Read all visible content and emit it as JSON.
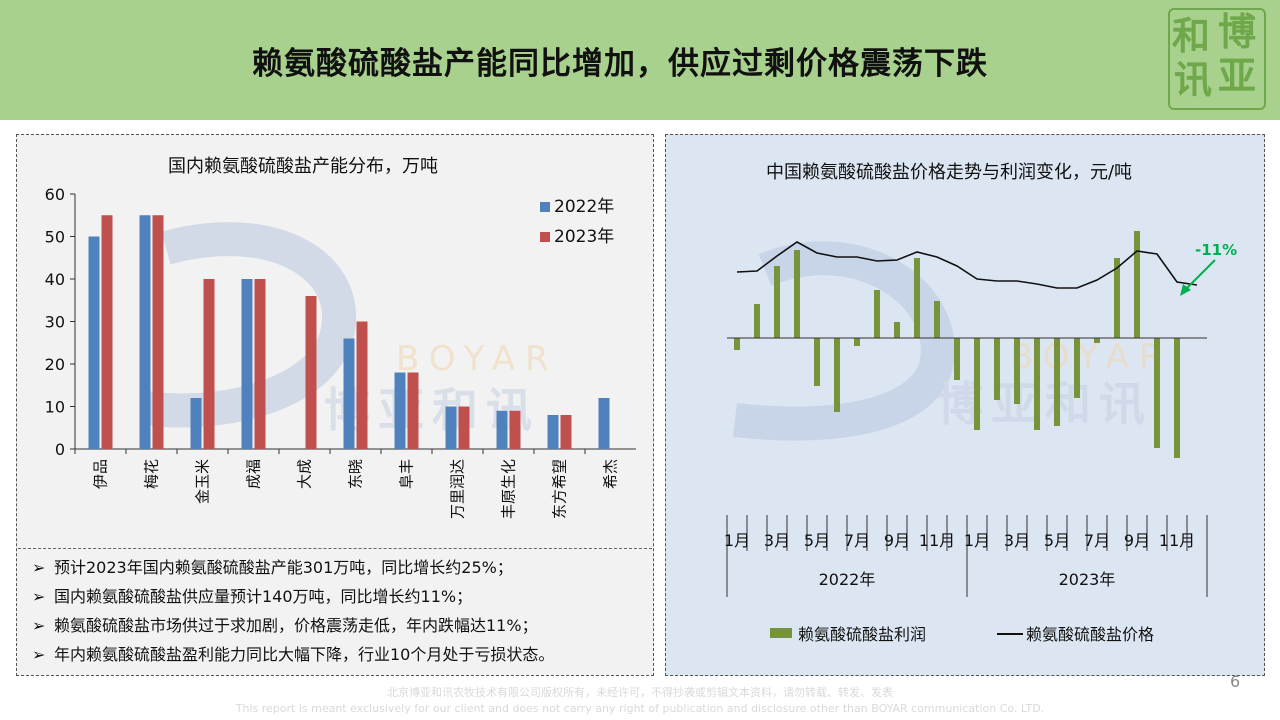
{
  "title": "赖氨酸硫酸盐产能同比增加，供应过剩价格震荡下跌",
  "logo": {
    "chars": [
      "和",
      "博",
      "讯",
      "亚"
    ]
  },
  "watermark": {
    "en": "BOYAR",
    "cn": "博亚和讯"
  },
  "colors": {
    "header": "#a9d18e",
    "blue": "#4f81bd",
    "red": "#c0504d",
    "green": "#77933c",
    "annot": "#00b050"
  },
  "left_chart_title": "国内赖氨酸硫酸盐产能分布，万吨",
  "right_chart_title": "中国赖氨酸硫酸盐价格走势与利润变化，元/吨",
  "notes": [
    "预计2023年国内赖氨酸硫酸盐产能301万吨，同比增长约25%；",
    "国内赖氨酸硫酸盐供应量预计140万吨，同比增长约11%；",
    "赖氨酸硫酸盐市场供过于求加剧，价格震荡走低，年内跌幅达11%；",
    "年内赖氨酸硫酸盐盈利能力同比大幅下降，行业10个月处于亏损状态。"
  ],
  "footer": {
    "line1": "北京博亚和讯农牧技术有限公司版权所有，未经许可，不得抄袭或剪辑文本资料，请勿转载、转发、发表",
    "line2": "This report is meant exclusively for our client and does not carry any right of publication and disclosure other than BOYAR communication Co. LTD."
  },
  "page_number": "6",
  "chart_data": [
    {
      "type": "bar",
      "title": "国内赖氨酸硫酸盐产能分布，万吨",
      "categories": [
        "伊品",
        "梅花",
        "金玉米",
        "成福",
        "大成",
        "东晓",
        "阜丰",
        "万里润达",
        "丰原生化",
        "东方希望",
        "希杰"
      ],
      "series": [
        {
          "name": "2022年",
          "values": [
            50,
            55,
            12,
            40,
            0,
            26,
            18,
            10,
            9,
            8,
            12
          ]
        },
        {
          "name": "2023年",
          "values": [
            55,
            55,
            40,
            40,
            36,
            30,
            18,
            10,
            9,
            8,
            null
          ]
        }
      ],
      "ylim": [
        0,
        60
      ],
      "yticks": [
        0,
        10,
        20,
        30,
        40,
        50,
        60
      ],
      "legend": "top-right"
    },
    {
      "type": "bar+line",
      "title": "中国赖氨酸硫酸盐价格走势与利润变化，元/吨",
      "x": [
        "2022-01",
        "2022-02",
        "2022-03",
        "2022-04",
        "2022-05",
        "2022-06",
        "2022-07",
        "2022-08",
        "2022-09",
        "2022-10",
        "2022-11",
        "2022-12",
        "2023-01",
        "2023-02",
        "2023-03",
        "2023-04",
        "2023-05",
        "2023-06",
        "2023-07",
        "2023-08",
        "2023-09",
        "2023-10",
        "2023-11",
        "2023-12"
      ],
      "x_tick_labels": [
        "1月",
        "3月",
        "5月",
        "7月",
        "9月",
        "11月",
        "1月",
        "3月",
        "5月",
        "7月",
        "9月",
        "11月"
      ],
      "year_labels": [
        "2022年",
        "2023年"
      ],
      "series": [
        {
          "name": "赖氨酸硫酸盐利润",
          "kind": "bar",
          "values": [
            -0.12,
            0.34,
            0.72,
            0.88,
            -0.48,
            -0.74,
            -0.08,
            0.48,
            0.16,
            0.8,
            0.37,
            -0.42,
            -0.92,
            -0.62,
            -0.66,
            -0.92,
            -0.88,
            -0.6,
            -0.05,
            0.8,
            1.07,
            -1.1,
            -1.2,
            0.0
          ]
        },
        {
          "name": "赖氨酸硫酸盐价格",
          "kind": "line",
          "values": [
            0.66,
            0.67,
            0.82,
            0.96,
            0.85,
            0.81,
            0.81,
            0.77,
            0.78,
            0.86,
            0.81,
            0.72,
            0.59,
            0.57,
            0.57,
            0.54,
            0.5,
            0.5,
            0.58,
            0.7,
            0.87,
            0.84,
            0.56,
            0.53
          ]
        }
      ],
      "annotations": [
        {
          "text": "-11%"
        }
      ],
      "legend": "bottom"
    }
  ]
}
